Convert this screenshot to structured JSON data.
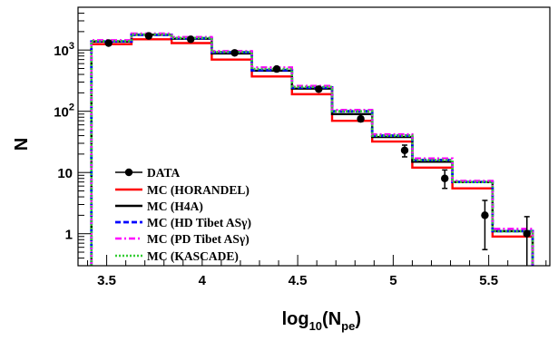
{
  "chart_data": {
    "type": "line",
    "xlabel": {
      "main": "log",
      "sub1": "10",
      "mid": "(N",
      "sub2": "pe",
      "end": ")"
    },
    "ylabel": "N",
    "xlim": [
      3.35,
      5.82
    ],
    "ylim": [
      0.3,
      5000
    ],
    "log_y": true,
    "grid": false,
    "legend_position": "bottom-left",
    "x_ticks": [
      "3.5",
      "4",
      "4.5",
      "5",
      "5.5"
    ],
    "x_tick_values": [
      3.5,
      4.0,
      4.5,
      5.0,
      5.5
    ],
    "y_ticks": [
      "1",
      "10",
      "10²",
      "10³"
    ],
    "y_tick_values": [
      1,
      10,
      100,
      1000
    ],
    "bin_edges": [
      3.42,
      3.63,
      3.84,
      4.05,
      4.26,
      4.47,
      4.68,
      4.89,
      5.1,
      5.31,
      5.52,
      5.73
    ],
    "data": {
      "name": "DATA",
      "x": [
        3.51,
        3.72,
        3.94,
        4.17,
        4.39,
        4.61,
        4.83,
        5.06,
        5.27,
        5.48,
        5.7
      ],
      "y": [
        1300,
        1700,
        1500,
        900,
        490,
        230,
        75,
        23,
        8,
        2.0,
        1.0
      ],
      "err_low": [
        1250,
        1640,
        1450,
        860,
        460,
        215,
        68,
        18,
        5.5,
        0.55,
        0.1
      ],
      "err_high": [
        1350,
        1760,
        1550,
        940,
        520,
        245,
        82,
        28,
        11,
        3.5,
        1.9
      ]
    },
    "series": [
      {
        "name": "MC (HORANDEL)",
        "values": [
          1250,
          1500,
          1300,
          700,
          370,
          190,
          70,
          32,
          12,
          5.5,
          0.9
        ]
      },
      {
        "name": "MC (H4A)",
        "values": [
          1380,
          1780,
          1530,
          880,
          460,
          235,
          90,
          38,
          15,
          7.0,
          1.1
        ]
      },
      {
        "name": "MC (HD Tibet ASγ)",
        "values": [
          1380,
          1770,
          1560,
          920,
          470,
          245,
          100,
          40,
          16,
          7.0,
          1.1
        ]
      },
      {
        "name": "MC (PD Tibet ASγ)",
        "values": [
          1450,
          1860,
          1630,
          960,
          520,
          260,
          105,
          42,
          17,
          7.3,
          1.2
        ]
      },
      {
        "name": "MC (KASCADE)",
        "values": [
          1400,
          1800,
          1580,
          930,
          490,
          250,
          100,
          40,
          16,
          7.0,
          1.1
        ]
      }
    ],
    "colors": {
      "data": "#000000",
      "MC (HORANDEL)": "#ff0000",
      "MC (H4A)": "#000000",
      "MC (HD Tibet ASγ)": "#0000ff",
      "MC (PD Tibet ASγ)": "#ff00ff",
      "MC (KASCADE)": "#33cc33"
    }
  }
}
